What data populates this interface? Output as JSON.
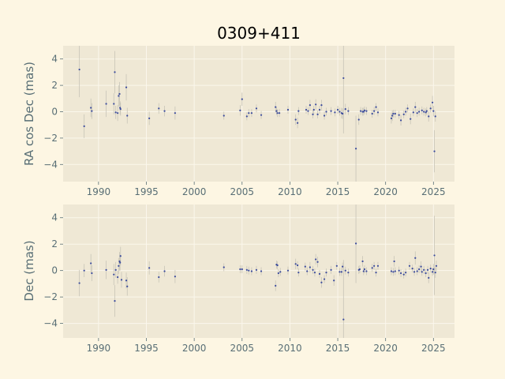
{
  "title": "0309+411",
  "colors": {
    "figure_bg": "#fdf6e3",
    "axes_bg": "#efe8d5",
    "grid": "#fbf7ec",
    "text": "#586e75",
    "point": "#3a4a9c",
    "errorbar": "#c7c4b7"
  },
  "chart_data": [
    {
      "type": "scatter",
      "ylabel": "RA cos Dec (mas)",
      "xlim": [
        1986.3,
        2027.2
      ],
      "ylim": [
        -5.3,
        5.0
      ],
      "xticks": [
        1990,
        1995,
        2000,
        2005,
        2010,
        2015,
        2020,
        2025
      ],
      "yticks": [
        -4,
        -2,
        0,
        2,
        4
      ],
      "grid": true,
      "points": [
        [
          1988.0,
          3.2,
          2.1
        ],
        [
          1988.5,
          -1.1,
          0.9
        ],
        [
          1989.2,
          0.3,
          0.7
        ],
        [
          1989.3,
          0.05,
          0.6
        ],
        [
          1990.8,
          0.6,
          1.0
        ],
        [
          1991.6,
          0.6,
          0.8
        ],
        [
          1991.7,
          3.0,
          1.6
        ],
        [
          1991.8,
          -0.05,
          0.5
        ],
        [
          1992.0,
          -0.1,
          0.6
        ],
        [
          1992.1,
          1.2,
          0.8
        ],
        [
          1992.2,
          1.35,
          0.9
        ],
        [
          1992.25,
          0.3,
          0.5
        ],
        [
          1992.3,
          0.2,
          0.5
        ],
        [
          1992.9,
          1.85,
          1.0
        ],
        [
          1993.0,
          -0.3,
          0.6
        ],
        [
          1995.3,
          -0.5,
          0.5
        ],
        [
          1996.3,
          0.25,
          0.4
        ],
        [
          1996.9,
          0.05,
          0.4
        ],
        [
          1998.0,
          -0.1,
          0.5
        ],
        [
          2003.1,
          -0.3,
          0.3
        ],
        [
          2004.8,
          0.1,
          0.4
        ],
        [
          2005.0,
          0.95,
          0.5
        ],
        [
          2005.5,
          -0.35,
          0.3
        ],
        [
          2005.7,
          -0.1,
          0.3
        ],
        [
          2006.0,
          -0.1,
          0.3
        ],
        [
          2006.5,
          0.25,
          0.3
        ],
        [
          2007.0,
          -0.25,
          0.3
        ],
        [
          2008.5,
          0.35,
          0.4
        ],
        [
          2008.6,
          0.05,
          0.3
        ],
        [
          2008.7,
          -0.1,
          0.3
        ],
        [
          2008.9,
          -0.1,
          0.3
        ],
        [
          2009.8,
          0.15,
          0.3
        ],
        [
          2010.6,
          -0.6,
          0.4
        ],
        [
          2010.8,
          -0.85,
          0.4
        ],
        [
          2010.9,
          0.05,
          0.3
        ],
        [
          2011.7,
          0.15,
          0.3
        ],
        [
          2011.9,
          0.05,
          0.3
        ],
        [
          2012.1,
          0.5,
          0.4
        ],
        [
          2012.4,
          -0.2,
          0.3
        ],
        [
          2012.5,
          0.15,
          0.3
        ],
        [
          2012.7,
          0.55,
          0.4
        ],
        [
          2012.9,
          -0.2,
          0.3
        ],
        [
          2013.1,
          0.15,
          0.3
        ],
        [
          2013.3,
          0.5,
          0.4
        ],
        [
          2013.6,
          -0.3,
          0.3
        ],
        [
          2013.8,
          0.0,
          0.3
        ],
        [
          2014.3,
          0.05,
          0.3
        ],
        [
          2014.7,
          -0.05,
          0.3
        ],
        [
          2015.0,
          0.15,
          0.3
        ],
        [
          2015.2,
          0.0,
          0.3
        ],
        [
          2015.4,
          -0.1,
          0.4
        ],
        [
          2015.5,
          -0.15,
          0.4
        ],
        [
          2015.6,
          2.55,
          4.2
        ],
        [
          2015.8,
          0.2,
          0.4
        ],
        [
          2016.1,
          0.05,
          0.3
        ],
        [
          2016.9,
          -2.8,
          2.5
        ],
        [
          2017.2,
          -0.6,
          0.4
        ],
        [
          2017.4,
          0.05,
          0.3
        ],
        [
          2017.6,
          0.0,
          0.3
        ],
        [
          2017.7,
          0.0,
          0.3
        ],
        [
          2017.8,
          0.1,
          0.3
        ],
        [
          2018.0,
          0.05,
          0.3
        ],
        [
          2018.6,
          -0.15,
          0.3
        ],
        [
          2018.8,
          0.05,
          0.3
        ],
        [
          2019.0,
          0.35,
          0.3
        ],
        [
          2019.2,
          -0.05,
          0.3
        ],
        [
          2020.6,
          -0.5,
          0.4
        ],
        [
          2020.7,
          -0.3,
          0.4
        ],
        [
          2020.8,
          -0.15,
          0.3
        ],
        [
          2021.0,
          -0.15,
          0.3
        ],
        [
          2021.4,
          -0.25,
          0.3
        ],
        [
          2021.6,
          -0.65,
          0.4
        ],
        [
          2021.9,
          -0.2,
          0.3
        ],
        [
          2022.1,
          0.0,
          0.3
        ],
        [
          2022.3,
          0.25,
          0.3
        ],
        [
          2022.6,
          -0.55,
          0.4
        ],
        [
          2022.9,
          -0.05,
          0.3
        ],
        [
          2023.1,
          0.35,
          0.4
        ],
        [
          2023.3,
          -0.1,
          0.3
        ],
        [
          2023.5,
          0.0,
          0.3
        ],
        [
          2023.8,
          0.1,
          0.3
        ],
        [
          2024.0,
          0.0,
          0.3
        ],
        [
          2024.2,
          -0.05,
          0.3
        ],
        [
          2024.3,
          0.05,
          0.3
        ],
        [
          2024.5,
          -0.35,
          0.4
        ],
        [
          2024.7,
          0.25,
          0.3
        ],
        [
          2024.9,
          0.7,
          0.5
        ],
        [
          2025.0,
          0.05,
          0.4
        ],
        [
          2025.1,
          -3.0,
          1.6
        ],
        [
          2025.2,
          -0.35,
          0.4
        ]
      ]
    },
    {
      "type": "scatter",
      "ylabel": "Dec (mas)",
      "xlim": [
        1986.3,
        2027.2
      ],
      "ylim": [
        -5.1,
        5.0
      ],
      "xticks": [
        1990,
        1995,
        2000,
        2005,
        2010,
        2015,
        2020,
        2025
      ],
      "yticks": [
        -4,
        -2,
        0,
        2,
        4
      ],
      "grid": true,
      "points": [
        [
          1988.0,
          -0.95,
          1.0
        ],
        [
          1988.5,
          0.0,
          0.5
        ],
        [
          1989.2,
          0.55,
          0.7
        ],
        [
          1989.3,
          -0.2,
          0.6
        ],
        [
          1990.8,
          0.05,
          0.7
        ],
        [
          1991.6,
          -0.3,
          0.8
        ],
        [
          1991.7,
          -2.3,
          1.2
        ],
        [
          1991.8,
          0.05,
          0.6
        ],
        [
          1992.0,
          -0.5,
          0.5
        ],
        [
          1992.1,
          0.35,
          0.6
        ],
        [
          1992.2,
          0.7,
          0.7
        ],
        [
          1992.25,
          0.6,
          0.6
        ],
        [
          1992.3,
          1.1,
          0.7
        ],
        [
          1992.4,
          -0.7,
          0.6
        ],
        [
          1992.9,
          -0.75,
          0.6
        ],
        [
          1993.0,
          -1.2,
          0.7
        ],
        [
          1995.3,
          0.2,
          0.5
        ],
        [
          1996.3,
          -0.5,
          0.4
        ],
        [
          1996.9,
          -0.05,
          0.4
        ],
        [
          1998.0,
          -0.45,
          0.5
        ],
        [
          2003.1,
          0.25,
          0.3
        ],
        [
          2004.8,
          0.1,
          0.3
        ],
        [
          2005.0,
          0.1,
          0.3
        ],
        [
          2005.5,
          0.05,
          0.3
        ],
        [
          2005.7,
          0.0,
          0.3
        ],
        [
          2006.0,
          -0.05,
          0.3
        ],
        [
          2006.5,
          0.05,
          0.3
        ],
        [
          2007.0,
          -0.05,
          0.3
        ],
        [
          2008.5,
          -1.15,
          0.4
        ],
        [
          2008.6,
          0.45,
          0.3
        ],
        [
          2008.7,
          0.4,
          0.3
        ],
        [
          2008.8,
          -0.2,
          0.3
        ],
        [
          2009.0,
          -0.1,
          0.3
        ],
        [
          2009.8,
          0.0,
          0.3
        ],
        [
          2010.6,
          0.5,
          0.4
        ],
        [
          2010.8,
          0.4,
          0.3
        ],
        [
          2010.9,
          -0.15,
          0.3
        ],
        [
          2011.6,
          0.3,
          0.3
        ],
        [
          2011.8,
          -0.05,
          0.3
        ],
        [
          2012.1,
          0.25,
          0.4
        ],
        [
          2012.4,
          0.05,
          0.3
        ],
        [
          2012.6,
          -0.15,
          0.3
        ],
        [
          2012.7,
          0.85,
          0.4
        ],
        [
          2012.9,
          0.65,
          0.4
        ],
        [
          2013.1,
          -0.25,
          0.3
        ],
        [
          2013.3,
          -0.9,
          0.4
        ],
        [
          2013.6,
          -0.65,
          0.3
        ],
        [
          2013.8,
          -0.15,
          0.3
        ],
        [
          2014.3,
          0.05,
          0.3
        ],
        [
          2014.6,
          -0.75,
          0.4
        ],
        [
          2014.9,
          0.35,
          0.3
        ],
        [
          2015.2,
          -0.1,
          0.3
        ],
        [
          2015.4,
          -0.1,
          0.3
        ],
        [
          2015.5,
          0.3,
          0.3
        ],
        [
          2015.6,
          -3.7,
          4.5
        ],
        [
          2015.8,
          0.0,
          0.3
        ],
        [
          2016.1,
          -0.15,
          0.3
        ],
        [
          2016.9,
          2.05,
          3.0
        ],
        [
          2017.2,
          0.05,
          0.3
        ],
        [
          2017.3,
          0.1,
          0.3
        ],
        [
          2017.6,
          0.7,
          0.4
        ],
        [
          2017.7,
          -0.05,
          0.3
        ],
        [
          2017.8,
          0.1,
          0.3
        ],
        [
          2018.0,
          -0.05,
          0.3
        ],
        [
          2018.6,
          0.2,
          0.3
        ],
        [
          2018.8,
          0.35,
          0.3
        ],
        [
          2019.0,
          -0.15,
          0.3
        ],
        [
          2019.2,
          0.35,
          0.3
        ],
        [
          2020.6,
          -0.05,
          0.3
        ],
        [
          2020.8,
          -0.1,
          0.3
        ],
        [
          2020.9,
          0.7,
          0.4
        ],
        [
          2021.0,
          -0.05,
          0.3
        ],
        [
          2021.4,
          0.0,
          0.3
        ],
        [
          2021.6,
          -0.2,
          0.3
        ],
        [
          2021.9,
          -0.3,
          0.3
        ],
        [
          2022.1,
          -0.15,
          0.3
        ],
        [
          2022.5,
          0.35,
          0.3
        ],
        [
          2022.8,
          0.15,
          0.3
        ],
        [
          2023.0,
          -0.1,
          0.3
        ],
        [
          2023.1,
          0.95,
          0.5
        ],
        [
          2023.3,
          -0.05,
          0.3
        ],
        [
          2023.5,
          0.1,
          0.3
        ],
        [
          2023.7,
          0.3,
          0.4
        ],
        [
          2023.8,
          -0.1,
          0.3
        ],
        [
          2024.0,
          0.05,
          0.3
        ],
        [
          2024.2,
          -0.2,
          0.3
        ],
        [
          2024.4,
          0.05,
          0.3
        ],
        [
          2024.5,
          -0.55,
          0.4
        ],
        [
          2024.7,
          0.15,
          0.3
        ],
        [
          2024.9,
          -0.1,
          0.3
        ],
        [
          2025.0,
          0.1,
          0.4
        ],
        [
          2025.1,
          1.15,
          3.0
        ],
        [
          2025.2,
          -0.15,
          0.4
        ],
        [
          2025.3,
          0.35,
          0.4
        ]
      ]
    }
  ]
}
